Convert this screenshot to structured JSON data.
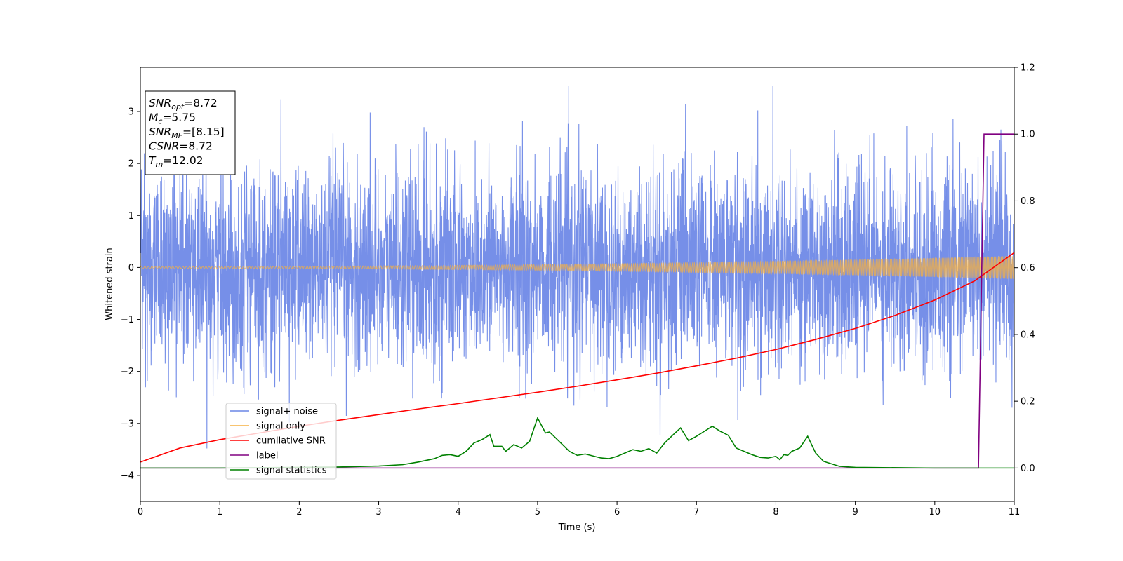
{
  "chart_data": {
    "type": "line",
    "xlabel": "Time (s)",
    "ylabel": "Whitened strain",
    "xlim": [
      0,
      11
    ],
    "ylim": [
      -4.5,
      3.85
    ],
    "ylim_right": [
      -0.1,
      1.2
    ],
    "x_ticks": [
      0,
      1,
      2,
      3,
      4,
      5,
      6,
      7,
      8,
      9,
      10,
      11
    ],
    "y_ticks": [
      -4,
      -3,
      -2,
      -1,
      0,
      1,
      2,
      3
    ],
    "y_ticks_right": [
      0.0,
      0.2,
      0.4,
      0.6,
      0.8,
      1.0,
      1.2
    ],
    "info_box": [
      {
        "base": "SNR",
        "sub": "opt",
        "value": "=8.72"
      },
      {
        "base": "M",
        "sub": "c",
        "value": "=5.75"
      },
      {
        "base": "SNR",
        "sub": "MF",
        "value": "=[8.15]"
      },
      {
        "base": "CSNR",
        "sub": "",
        "value": "=8.72"
      },
      {
        "base": "T",
        "sub": "m",
        "value": "=12.02"
      }
    ],
    "legend_position": "lower-left",
    "series": [
      {
        "name": "signal+ noise",
        "color": "#6a86e6",
        "axis": "left",
        "kind": "noise",
        "noise_std": 0.95,
        "x_range": [
          0,
          11
        ]
      },
      {
        "name": "signal only",
        "color": "#f5b041",
        "axis": "left",
        "kind": "chirp",
        "amplitude_start": 0.02,
        "amplitude_end": 0.22,
        "x_range": [
          0,
          11
        ]
      },
      {
        "name": "cumilative SNR",
        "color": "#ff0000",
        "axis": "right",
        "x": [
          0,
          0.5,
          1,
          1.5,
          2,
          2.5,
          3,
          3.5,
          4,
          4.5,
          5,
          5.5,
          6,
          6.5,
          7,
          7.5,
          8,
          8.5,
          9,
          9.5,
          10,
          10.5,
          11
        ],
        "values": [
          0.018,
          0.06,
          0.085,
          0.105,
          0.125,
          0.143,
          0.16,
          0.177,
          0.193,
          0.21,
          0.227,
          0.245,
          0.264,
          0.284,
          0.306,
          0.329,
          0.355,
          0.385,
          0.418,
          0.457,
          0.503,
          0.56,
          0.645
        ]
      },
      {
        "name": "label",
        "color": "#800080",
        "axis": "right",
        "x": [
          0,
          10.55,
          10.62,
          11
        ],
        "values": [
          0,
          0,
          1,
          1
        ]
      },
      {
        "name": "signal statistics",
        "color": "#008000",
        "axis": "right",
        "x": [
          0,
          1,
          2,
          2.5,
          3,
          3.3,
          3.5,
          3.7,
          3.8,
          3.9,
          4.0,
          4.1,
          4.2,
          4.3,
          4.4,
          4.45,
          4.55,
          4.6,
          4.7,
          4.8,
          4.9,
          5.0,
          5.1,
          5.15,
          5.25,
          5.4,
          5.5,
          5.6,
          5.8,
          5.9,
          6.0,
          6.1,
          6.2,
          6.3,
          6.4,
          6.5,
          6.6,
          6.7,
          6.8,
          6.9,
          7.0,
          7.1,
          7.2,
          7.3,
          7.4,
          7.5,
          7.6,
          7.7,
          7.8,
          7.9,
          8.0,
          8.05,
          8.1,
          8.15,
          8.2,
          8.3,
          8.4,
          8.5,
          8.6,
          8.8,
          9,
          10,
          11
        ],
        "values": [
          0,
          0,
          0.002,
          0.003,
          0.006,
          0.01,
          0.018,
          0.028,
          0.038,
          0.04,
          0.035,
          0.05,
          0.075,
          0.085,
          0.1,
          0.065,
          0.065,
          0.05,
          0.07,
          0.06,
          0.08,
          0.15,
          0.105,
          0.108,
          0.085,
          0.05,
          0.038,
          0.042,
          0.03,
          0.028,
          0.035,
          0.045,
          0.055,
          0.05,
          0.058,
          0.045,
          0.075,
          0.098,
          0.12,
          0.082,
          0.095,
          0.11,
          0.125,
          0.11,
          0.098,
          0.06,
          0.05,
          0.04,
          0.032,
          0.03,
          0.035,
          0.025,
          0.04,
          0.038,
          0.05,
          0.06,
          0.095,
          0.045,
          0.02,
          0.005,
          0.002,
          0,
          0
        ]
      }
    ]
  }
}
